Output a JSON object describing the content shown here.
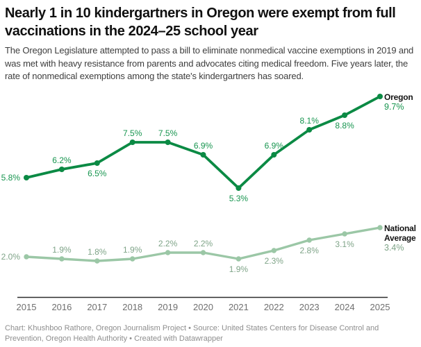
{
  "header": {
    "title": "Nearly 1 in 10 kindergartners in Oregon were exempt from full vaccinations in the 2024–25 school year",
    "description": "The Oregon Legislature attempted to pass a bill to eliminate nonmedical vaccine exemptions in 2019 and was met with heavy resistance from parents and advocates citing medical freedom. Five years later, the rate of nonmedical exemptions among the state's kindergartners has soared."
  },
  "chart_data": {
    "type": "line",
    "title": "Nearly 1 in 10 kindergartners in Oregon were exempt from full vaccinations in the 2024–25 school year",
    "x": [
      2015,
      2016,
      2017,
      2018,
      2019,
      2020,
      2021,
      2022,
      2023,
      2024,
      2025
    ],
    "xlabel": "",
    "ylabel": "",
    "ylim": [
      0,
      10.5
    ],
    "grid": false,
    "value_suffix": "%",
    "legend_position": "end-of-line",
    "series": [
      {
        "name": "Oregon",
        "name_lines": [
          "Oregon"
        ],
        "values": [
          5.8,
          6.2,
          6.5,
          7.5,
          7.5,
          6.9,
          5.3,
          6.9,
          8.1,
          8.8,
          9.7
        ],
        "color": "#0b8a44",
        "label_color": "#17954f",
        "label_positions": [
          "left",
          "above",
          "below",
          "above",
          "above",
          "above",
          "below",
          "above",
          "above",
          "below",
          "end"
        ]
      },
      {
        "name": "National Average",
        "name_lines": [
          "National",
          "Average"
        ],
        "values": [
          2.0,
          1.9,
          1.8,
          1.9,
          2.2,
          2.2,
          1.9,
          2.3,
          2.8,
          3.1,
          3.4
        ],
        "color": "#9bc7a6",
        "label_color": "#7fa488",
        "label_positions": [
          "left",
          "above",
          "above",
          "above",
          "above",
          "above",
          "below",
          "below",
          "below",
          "below",
          "end"
        ]
      }
    ]
  },
  "footer": {
    "credit": "Chart: Khushboo Rathore, Oregon Journalism Project • Source: United States Centers for Disease Control and Prevention, Oregon Health Authority • Created with Datawrapper"
  }
}
